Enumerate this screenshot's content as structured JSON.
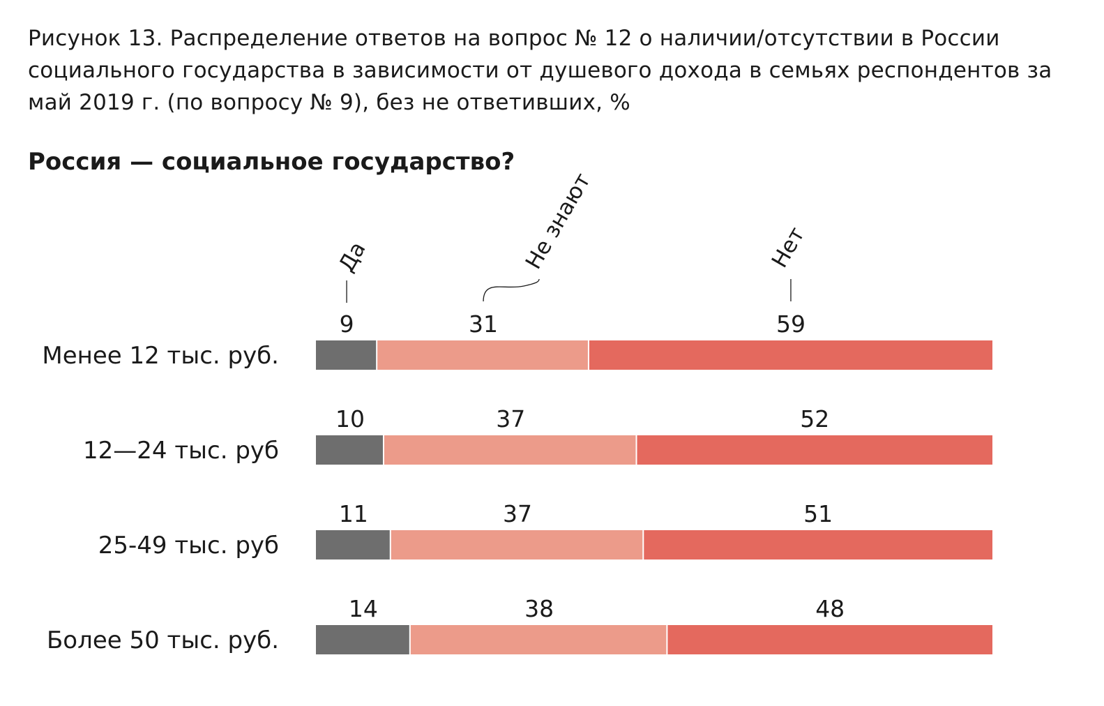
{
  "figure_title": "Рисунок 13. Распределение ответов на вопрос № 12 о наличии/отсутствии в России социального государства в зависимости от душевого дохода в семьях респондентов за май 2019 г. (по вопросу № 9), без не ответивших, %",
  "chart_data": {
    "type": "bar",
    "stacked": true,
    "orientation": "horizontal",
    "title": "Россия — социальное государство?",
    "categories": [
      "Менее 12 тыс. руб.",
      "12—24 тыс. руб",
      "25-49 тыс. руб",
      "Более 50 тыс. руб."
    ],
    "series": [
      {
        "name": "Да",
        "values": [
          9,
          10,
          11,
          14
        ],
        "color": "#6e6e6e"
      },
      {
        "name": "Не знают",
        "values": [
          31,
          37,
          37,
          38
        ],
        "color": "#ec9b8a"
      },
      {
        "name": "Нет",
        "values": [
          59,
          52,
          51,
          48
        ],
        "color": "#e4695e"
      }
    ],
    "xlim": [
      0,
      100
    ],
    "grid": false,
    "legend": "top, rotated labels"
  }
}
